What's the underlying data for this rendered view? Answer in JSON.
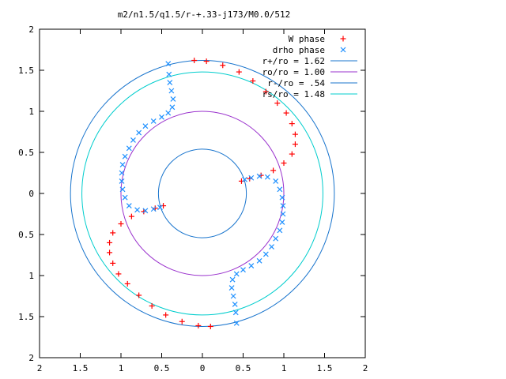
{
  "chart_data": {
    "type": "scatter",
    "title": "m2/n1.5/q1.5/r-+.33-j173/M0.0/512",
    "xlabel": "",
    "ylabel": "",
    "xlim": [
      -2,
      2
    ],
    "ylim": [
      -2,
      2
    ],
    "xtick_labels": [
      "2",
      "1.5",
      "1",
      "0.5",
      "0",
      "0.5",
      "1",
      "1.5",
      "2"
    ],
    "ytick_labels": [
      "2",
      "1.5",
      "1",
      "0.5",
      "0",
      "0.5",
      "1",
      "1.5",
      "2"
    ],
    "grid": false,
    "legend_position": "top-right",
    "series": [
      {
        "name": "W phase",
        "marker": "plus",
        "color": "#ff0000",
        "points": [
          [
            -0.1,
            1.62
          ],
          [
            0.05,
            1.61
          ],
          [
            0.25,
            1.56
          ],
          [
            0.45,
            1.48
          ],
          [
            0.62,
            1.37
          ],
          [
            0.78,
            1.24
          ],
          [
            0.92,
            1.1
          ],
          [
            1.03,
            0.98
          ],
          [
            1.1,
            0.85
          ],
          [
            1.14,
            0.72
          ],
          [
            1.14,
            0.6
          ],
          [
            1.1,
            0.48
          ],
          [
            1.0,
            0.37
          ],
          [
            0.87,
            0.28
          ],
          [
            0.72,
            0.22
          ],
          [
            0.58,
            0.18
          ],
          [
            0.48,
            0.15
          ],
          [
            0.1,
            -1.62
          ],
          [
            -0.05,
            -1.61
          ],
          [
            -0.25,
            -1.56
          ],
          [
            -0.45,
            -1.48
          ],
          [
            -0.62,
            -1.37
          ],
          [
            -0.78,
            -1.24
          ],
          [
            -0.92,
            -1.1
          ],
          [
            -1.03,
            -0.98
          ],
          [
            -1.1,
            -0.85
          ],
          [
            -1.14,
            -0.72
          ],
          [
            -1.14,
            -0.6
          ],
          [
            -1.1,
            -0.48
          ],
          [
            -1.0,
            -0.37
          ],
          [
            -0.87,
            -0.28
          ],
          [
            -0.72,
            -0.22
          ],
          [
            -0.58,
            -0.18
          ],
          [
            -0.48,
            -0.15
          ]
        ]
      },
      {
        "name": "drho phase",
        "marker": "x",
        "color": "#1e90ff",
        "points": [
          [
            -0.42,
            1.58
          ],
          [
            -0.41,
            1.45
          ],
          [
            -0.4,
            1.35
          ],
          [
            -0.38,
            1.25
          ],
          [
            -0.36,
            1.15
          ],
          [
            -0.37,
            1.05
          ],
          [
            -0.42,
            0.98
          ],
          [
            -0.5,
            0.93
          ],
          [
            -0.6,
            0.88
          ],
          [
            -0.7,
            0.82
          ],
          [
            -0.78,
            0.74
          ],
          [
            -0.85,
            0.65
          ],
          [
            -0.9,
            0.55
          ],
          [
            -0.95,
            0.45
          ],
          [
            -0.98,
            0.35
          ],
          [
            -0.99,
            0.25
          ],
          [
            -0.99,
            0.15
          ],
          [
            -0.98,
            0.05
          ],
          [
            -0.95,
            -0.05
          ],
          [
            -0.9,
            -0.15
          ],
          [
            -0.8,
            -0.2
          ],
          [
            -0.7,
            -0.21
          ],
          [
            -0.6,
            -0.19
          ],
          [
            -0.52,
            -0.17
          ],
          [
            0.42,
            -1.58
          ],
          [
            0.41,
            -1.45
          ],
          [
            0.4,
            -1.35
          ],
          [
            0.38,
            -1.25
          ],
          [
            0.36,
            -1.15
          ],
          [
            0.37,
            -1.05
          ],
          [
            0.42,
            -0.98
          ],
          [
            0.5,
            -0.93
          ],
          [
            0.6,
            -0.88
          ],
          [
            0.7,
            -0.82
          ],
          [
            0.78,
            -0.74
          ],
          [
            0.85,
            -0.65
          ],
          [
            0.9,
            -0.55
          ],
          [
            0.95,
            -0.45
          ],
          [
            0.98,
            -0.35
          ],
          [
            0.99,
            -0.25
          ],
          [
            0.99,
            -0.15
          ],
          [
            0.98,
            -0.05
          ],
          [
            0.95,
            0.05
          ],
          [
            0.9,
            0.15
          ],
          [
            0.8,
            0.2
          ],
          [
            0.7,
            0.21
          ],
          [
            0.6,
            0.19
          ],
          [
            0.52,
            0.17
          ]
        ]
      },
      {
        "name": "r+/ro = 1.62",
        "type": "circle",
        "radius": 1.62,
        "color": "#1874cd"
      },
      {
        "name": "ro/ro = 1.00",
        "type": "circle",
        "radius": 1.0,
        "color": "#9a32cd"
      },
      {
        "name": "r-/ro = .54",
        "type": "circle",
        "radius": 0.54,
        "color": "#1874cd"
      },
      {
        "name": "rs/ro = 1.48",
        "type": "circle",
        "radius": 1.48,
        "color": "#00cdcd"
      }
    ]
  }
}
